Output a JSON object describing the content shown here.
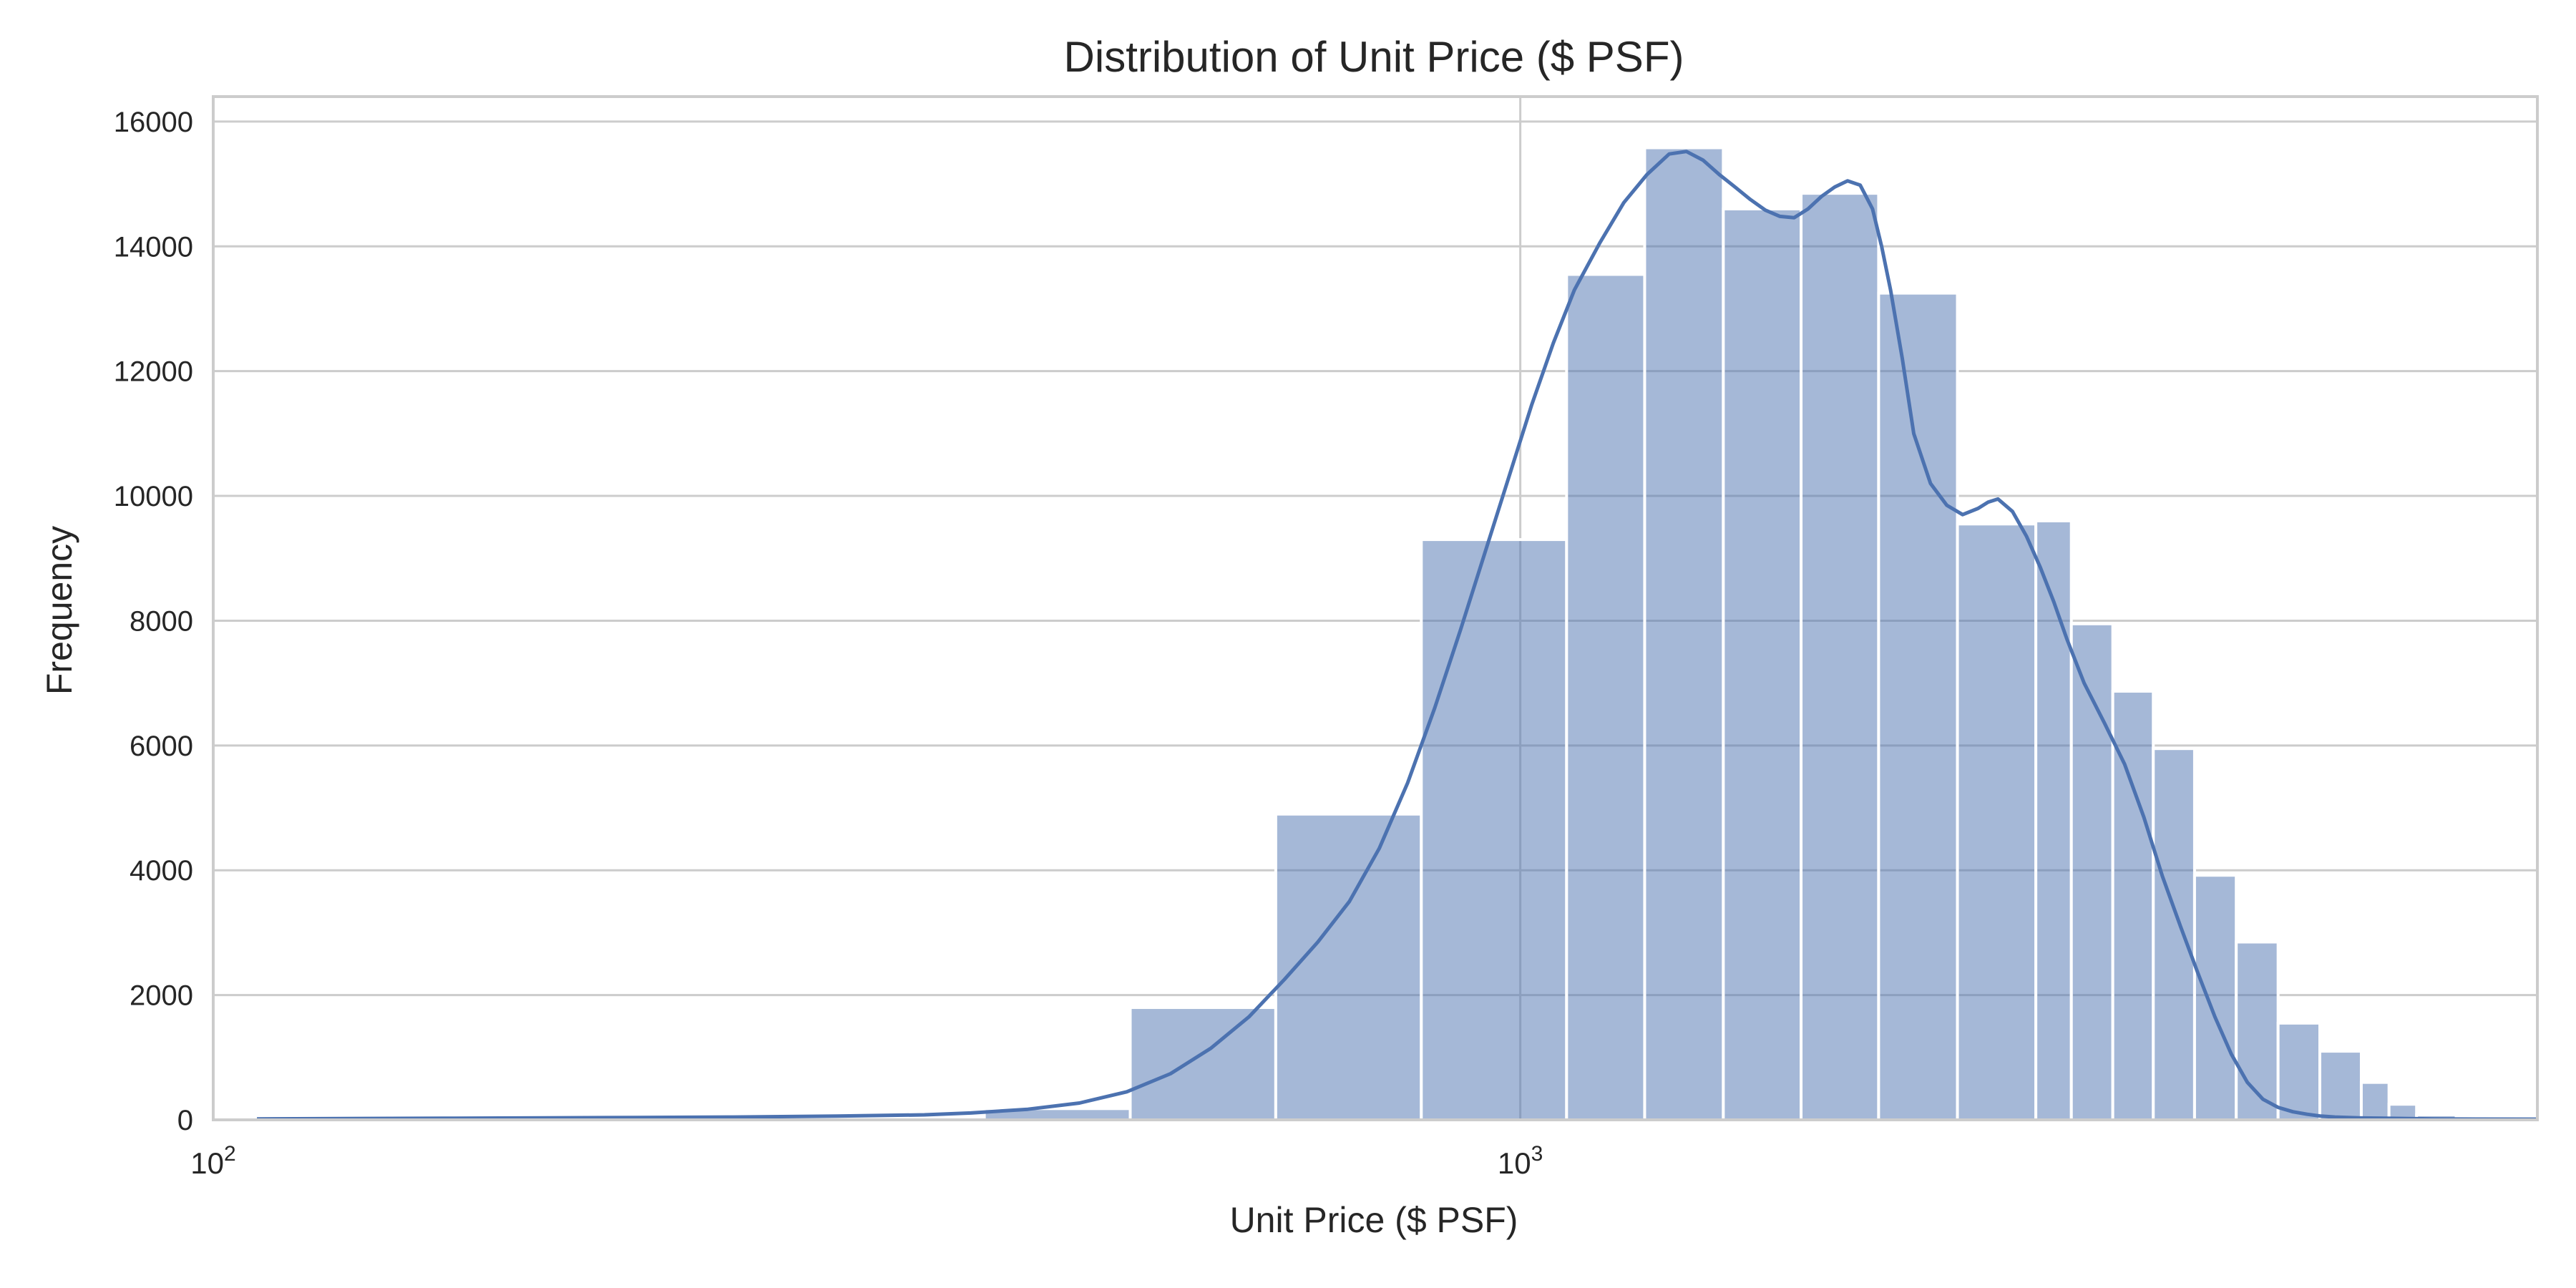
{
  "chart_data": {
    "type": "bar",
    "title": "Distribution of Unit Price ($ PSF)",
    "xlabel": "Unit Price ($ PSF)",
    "ylabel": "Frequency",
    "x_scale": "log",
    "xlim": [
      100,
      6000
    ],
    "ylim": [
      0,
      16400
    ],
    "grid": true,
    "legend": "none",
    "y_ticks": [
      0,
      2000,
      4000,
      6000,
      8000,
      10000,
      12000,
      14000,
      16000
    ],
    "x_ticks": [
      {
        "value": 100,
        "base": "10",
        "exp": "2"
      },
      {
        "value": 1000,
        "base": "10",
        "exp": "3"
      }
    ],
    "bar_color": "#4c72b0",
    "bar_opacity": 0.5,
    "line_color": "#4c72b0",
    "bins": [
      {
        "x0": 108,
        "x1": 139,
        "count": 10
      },
      {
        "x0": 139,
        "x1": 180,
        "count": 15
      },
      {
        "x0": 180,
        "x1": 233,
        "count": 20
      },
      {
        "x0": 233,
        "x1": 301,
        "count": 25
      },
      {
        "x0": 301,
        "x1": 389,
        "count": 40
      },
      {
        "x0": 389,
        "x1": 503,
        "count": 180
      },
      {
        "x0": 503,
        "x1": 650,
        "count": 1800
      },
      {
        "x0": 650,
        "x1": 840,
        "count": 4900
      },
      {
        "x0": 840,
        "x1": 1085,
        "count": 9300
      },
      {
        "x0": 1085,
        "x1": 1245,
        "count": 13550
      },
      {
        "x0": 1245,
        "x1": 1430,
        "count": 15580
      },
      {
        "x0": 1430,
        "x1": 1640,
        "count": 14600
      },
      {
        "x0": 1640,
        "x1": 1880,
        "count": 14850
      },
      {
        "x0": 1880,
        "x1": 2160,
        "count": 13250
      },
      {
        "x0": 2160,
        "x1": 2480,
        "count": 9550
      },
      {
        "x0": 2480,
        "x1": 2640,
        "count": 9600
      },
      {
        "x0": 2640,
        "x1": 2840,
        "count": 7950
      },
      {
        "x0": 2840,
        "x1": 3050,
        "count": 6870
      },
      {
        "x0": 3050,
        "x1": 3280,
        "count": 5950
      },
      {
        "x0": 3280,
        "x1": 3530,
        "count": 3920
      },
      {
        "x0": 3530,
        "x1": 3800,
        "count": 2850
      },
      {
        "x0": 3800,
        "x1": 4090,
        "count": 1550
      },
      {
        "x0": 4090,
        "x1": 4400,
        "count": 1100
      },
      {
        "x0": 4400,
        "x1": 4620,
        "count": 600
      },
      {
        "x0": 4620,
        "x1": 4850,
        "count": 250
      },
      {
        "x0": 4850,
        "x1": 5200,
        "count": 80
      },
      {
        "x0": 5200,
        "x1": 5600,
        "count": 30
      },
      {
        "x0": 5600,
        "x1": 6000,
        "count": 15
      }
    ],
    "kde": {
      "x": [
        108,
        150,
        200,
        250,
        300,
        350,
        380,
        420,
        460,
        500,
        540,
        580,
        620,
        660,
        700,
        740,
        780,
        820,
        860,
        900,
        940,
        980,
        1020,
        1060,
        1100,
        1150,
        1200,
        1250,
        1300,
        1340,
        1380,
        1420,
        1460,
        1500,
        1540,
        1580,
        1620,
        1660,
        1700,
        1740,
        1780,
        1820,
        1860,
        1890,
        1920,
        1960,
        2000,
        2060,
        2120,
        2180,
        2240,
        2280,
        2320,
        2380,
        2440,
        2500,
        2560,
        2620,
        2700,
        2800,
        2900,
        3000,
        3100,
        3200,
        3300,
        3400,
        3500,
        3600,
        3700,
        3800,
        3900,
        4000,
        4100,
        4200,
        4400,
        4600,
        4800,
        5000,
        5400,
        6000
      ],
      "y": [
        15,
        25,
        35,
        45,
        60,
        80,
        110,
        170,
        270,
        450,
        740,
        1150,
        1650,
        2250,
        2850,
        3500,
        4350,
        5400,
        6600,
        7850,
        9100,
        10300,
        11450,
        12450,
        13300,
        14050,
        14700,
        15150,
        15480,
        15520,
        15380,
        15150,
        14950,
        14750,
        14580,
        14480,
        14460,
        14600,
        14800,
        14950,
        15050,
        14980,
        14600,
        14000,
        13300,
        12200,
        11000,
        10200,
        9850,
        9700,
        9800,
        9900,
        9950,
        9750,
        9350,
        8850,
        8300,
        7700,
        7000,
        6350,
        5700,
        4850,
        3900,
        3100,
        2350,
        1650,
        1050,
        600,
        330,
        200,
        130,
        90,
        60,
        45,
        30,
        25,
        20,
        15,
        12,
        10
      ]
    }
  }
}
